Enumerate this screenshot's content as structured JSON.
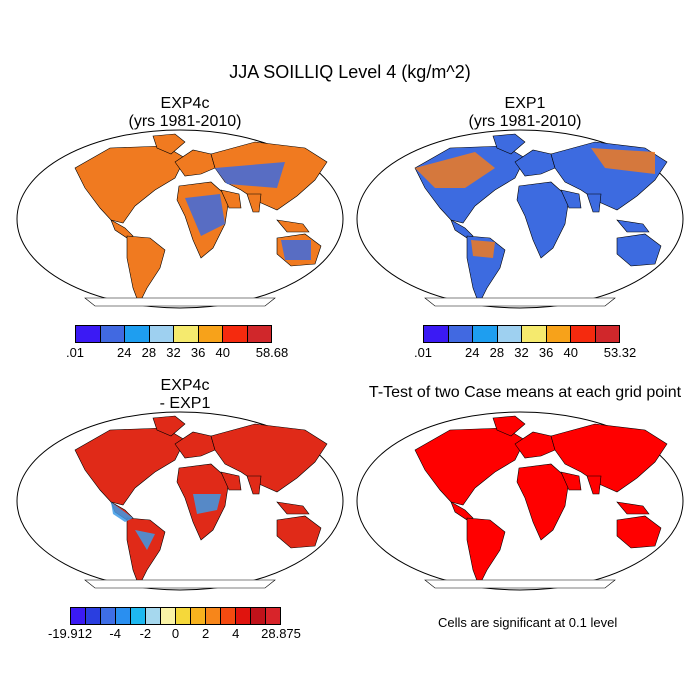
{
  "title": "JJA SOILLIQ Level 4 (kg/m^2)",
  "panels": [
    {
      "line1": "EXP4c",
      "line2": "(yrs 1981-2010)",
      "colorbar": {
        "labels": [
          ".01",
          "24",
          "28",
          "32",
          "36",
          "40",
          "58.68"
        ],
        "colors": [
          "#3b1af4",
          "#4169e1",
          "#1e9ef0",
          "#9ed0f0",
          "#f5ea6e",
          "#f7a21a",
          "#f52a0e",
          "#d0272b"
        ]
      }
    },
    {
      "line1": "EXP1",
      "line2": "(yrs 1981-2010)",
      "colorbar": {
        "labels": [
          ".01",
          "24",
          "28",
          "32",
          "36",
          "40",
          "53.32"
        ],
        "colors": [
          "#3b1af4",
          "#4169e1",
          "#1e9ef0",
          "#9ed0f0",
          "#f5ea6e",
          "#f7a21a",
          "#f52a0e",
          "#d0272b"
        ]
      }
    },
    {
      "line1": "EXP4c",
      "line2": "- EXP1",
      "colorbar": {
        "labels": [
          "-19.912",
          "-4",
          "-2",
          "0",
          "2",
          "4",
          "28.875"
        ],
        "colors": [
          "#3b1af4",
          "#2a3ee0",
          "#3e6ee6",
          "#2a8ff0",
          "#1eb8f0",
          "#a6d8ee",
          "#faf3a6",
          "#f5d83a",
          "#f7b21e",
          "#f7861a",
          "#f54a10",
          "#e0140e",
          "#c0121a",
          "#d8242a"
        ]
      }
    },
    {
      "line1": "T-Test of two Case means at each grid point",
      "line2": "",
      "note": "Cells are significant at 0.1 level"
    }
  ],
  "map_colors": {
    "ocean": "#ffffff",
    "panel1_land": "#f07a20",
    "panel1_cold": "#3d6be0",
    "panel2_land": "#3d6be0",
    "panel2_warm": "#f07a20",
    "panel3_land": "#e02a18",
    "panel3_cool": "#3d9ae6",
    "panel4_land": "#ff0000"
  }
}
